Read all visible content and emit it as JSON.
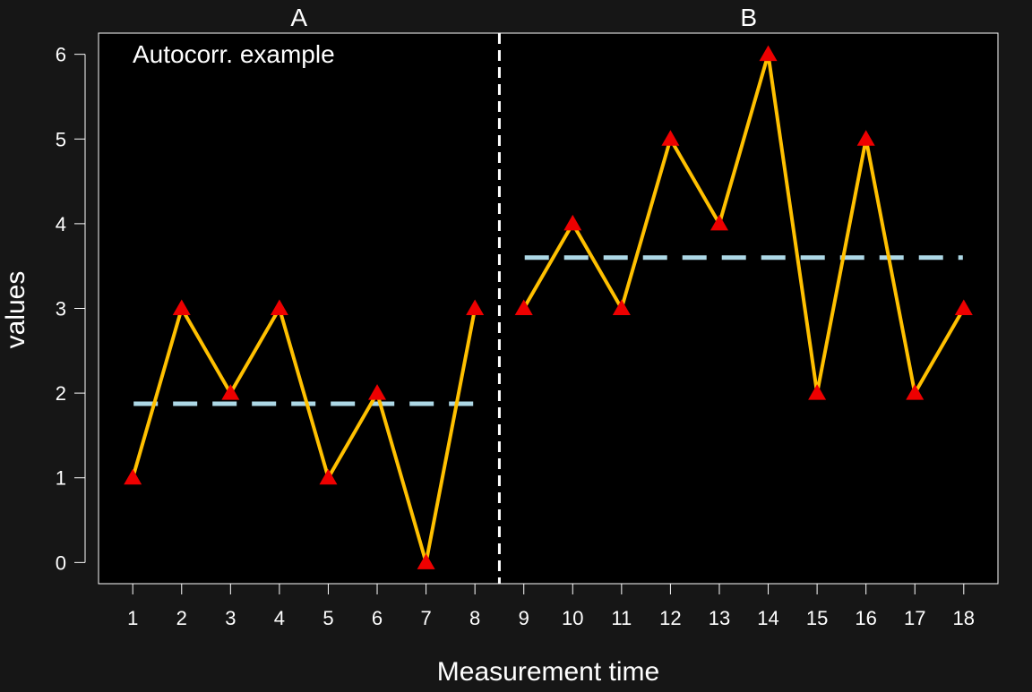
{
  "chart_data": {
    "type": "line",
    "title": "",
    "annotation": "Autocorr. example",
    "xlabel": "Measurement time",
    "ylabel": "values",
    "xlim": [
      0.3,
      18.7
    ],
    "ylim": [
      -0.25,
      6.25
    ],
    "x_ticks": [
      1,
      2,
      3,
      4,
      5,
      6,
      7,
      8,
      9,
      10,
      11,
      12,
      13,
      14,
      15,
      16,
      17,
      18
    ],
    "y_ticks": [
      0,
      1,
      2,
      3,
      4,
      5,
      6
    ],
    "grid": false,
    "phases": [
      {
        "label": "A",
        "start": 1,
        "end": 8,
        "mean": 1.875
      },
      {
        "label": "B",
        "start": 9,
        "end": 18,
        "mean": 3.6
      }
    ],
    "phase_change_x": 8.5,
    "series": [
      {
        "x": [
          1,
          2,
          3,
          4,
          5,
          6,
          7,
          8,
          9,
          10,
          11,
          12,
          13,
          14,
          15,
          16,
          17,
          18
        ],
        "values": [
          1,
          3,
          2,
          3,
          1,
          2,
          0,
          3,
          3,
          4,
          3,
          5,
          4,
          6,
          2,
          5,
          2,
          3
        ],
        "line_color": "#FFC000",
        "marker_color": "#EE0000",
        "marker": "triangle"
      }
    ],
    "colors": {
      "background": "#161616",
      "plot_background": "#000000",
      "axis": "#FFFFFF",
      "text": "#FFFFFF",
      "mean_line": "#ADD8E6",
      "phase_line": "#FFFFFF"
    }
  }
}
